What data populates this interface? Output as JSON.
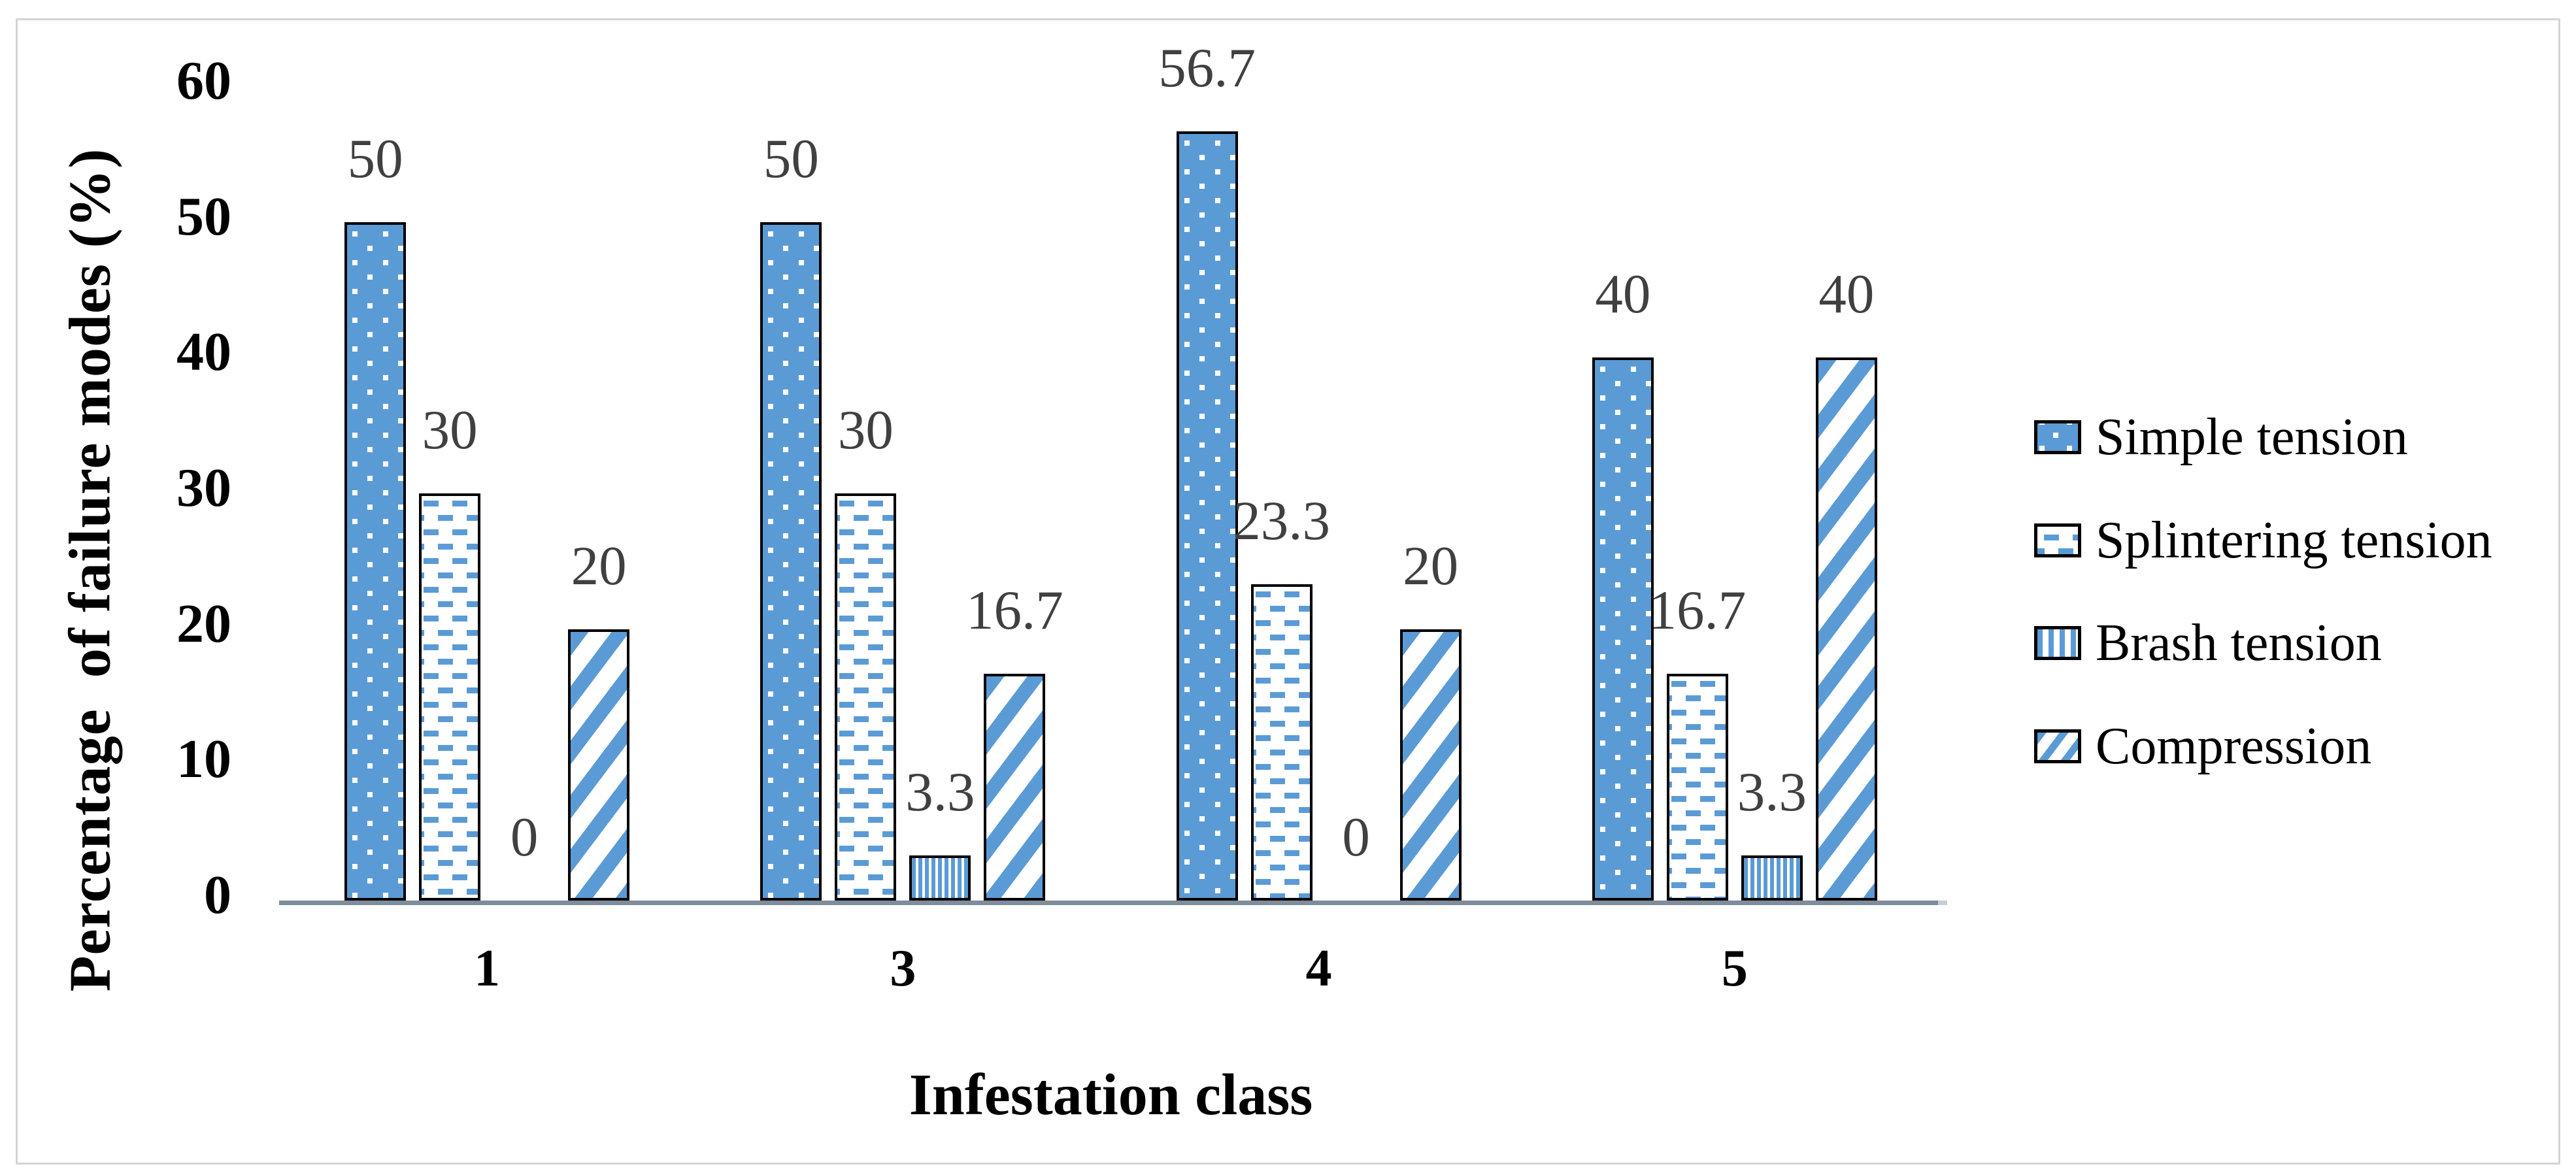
{
  "chart_data": {
    "type": "bar",
    "title": "",
    "xlabel": "Infestation class",
    "ylabel": "Percentage  of failure modes (%)",
    "categories": [
      "1",
      "3",
      "4",
      "5"
    ],
    "series": [
      {
        "name": "Simple tension",
        "pattern": "dots",
        "values": [
          50,
          50,
          56.7,
          40
        ],
        "labels": [
          "50",
          "50",
          "56.7",
          "40"
        ]
      },
      {
        "name": "Splintering tension",
        "pattern": "dashes",
        "values": [
          30,
          30,
          23.3,
          16.7
        ],
        "labels": [
          "30",
          "30",
          "23.3",
          "16.7"
        ]
      },
      {
        "name": "Brash tension",
        "pattern": "vlines",
        "values": [
          0,
          3.3,
          0,
          3.3
        ],
        "labels": [
          "0",
          "3.3",
          "0",
          "3.3"
        ]
      },
      {
        "name": "Compression",
        "pattern": "diagonal",
        "values": [
          20,
          16.7,
          20,
          40
        ],
        "labels": [
          "20",
          "16.7",
          "20",
          "40"
        ]
      }
    ],
    "ylim": [
      0,
      60
    ],
    "yticks": [
      0,
      10,
      20,
      30,
      40,
      50,
      60
    ],
    "grid": "off",
    "legend_position": "right",
    "data_labels": "outside-end",
    "colors": {
      "bar_fill": "#5B9BD5",
      "bar_border": "#000000",
      "axis_line": "#7E8C9C",
      "data_label": "#404040",
      "tick_label": "#000000",
      "frame": "#D4D4D4"
    }
  }
}
